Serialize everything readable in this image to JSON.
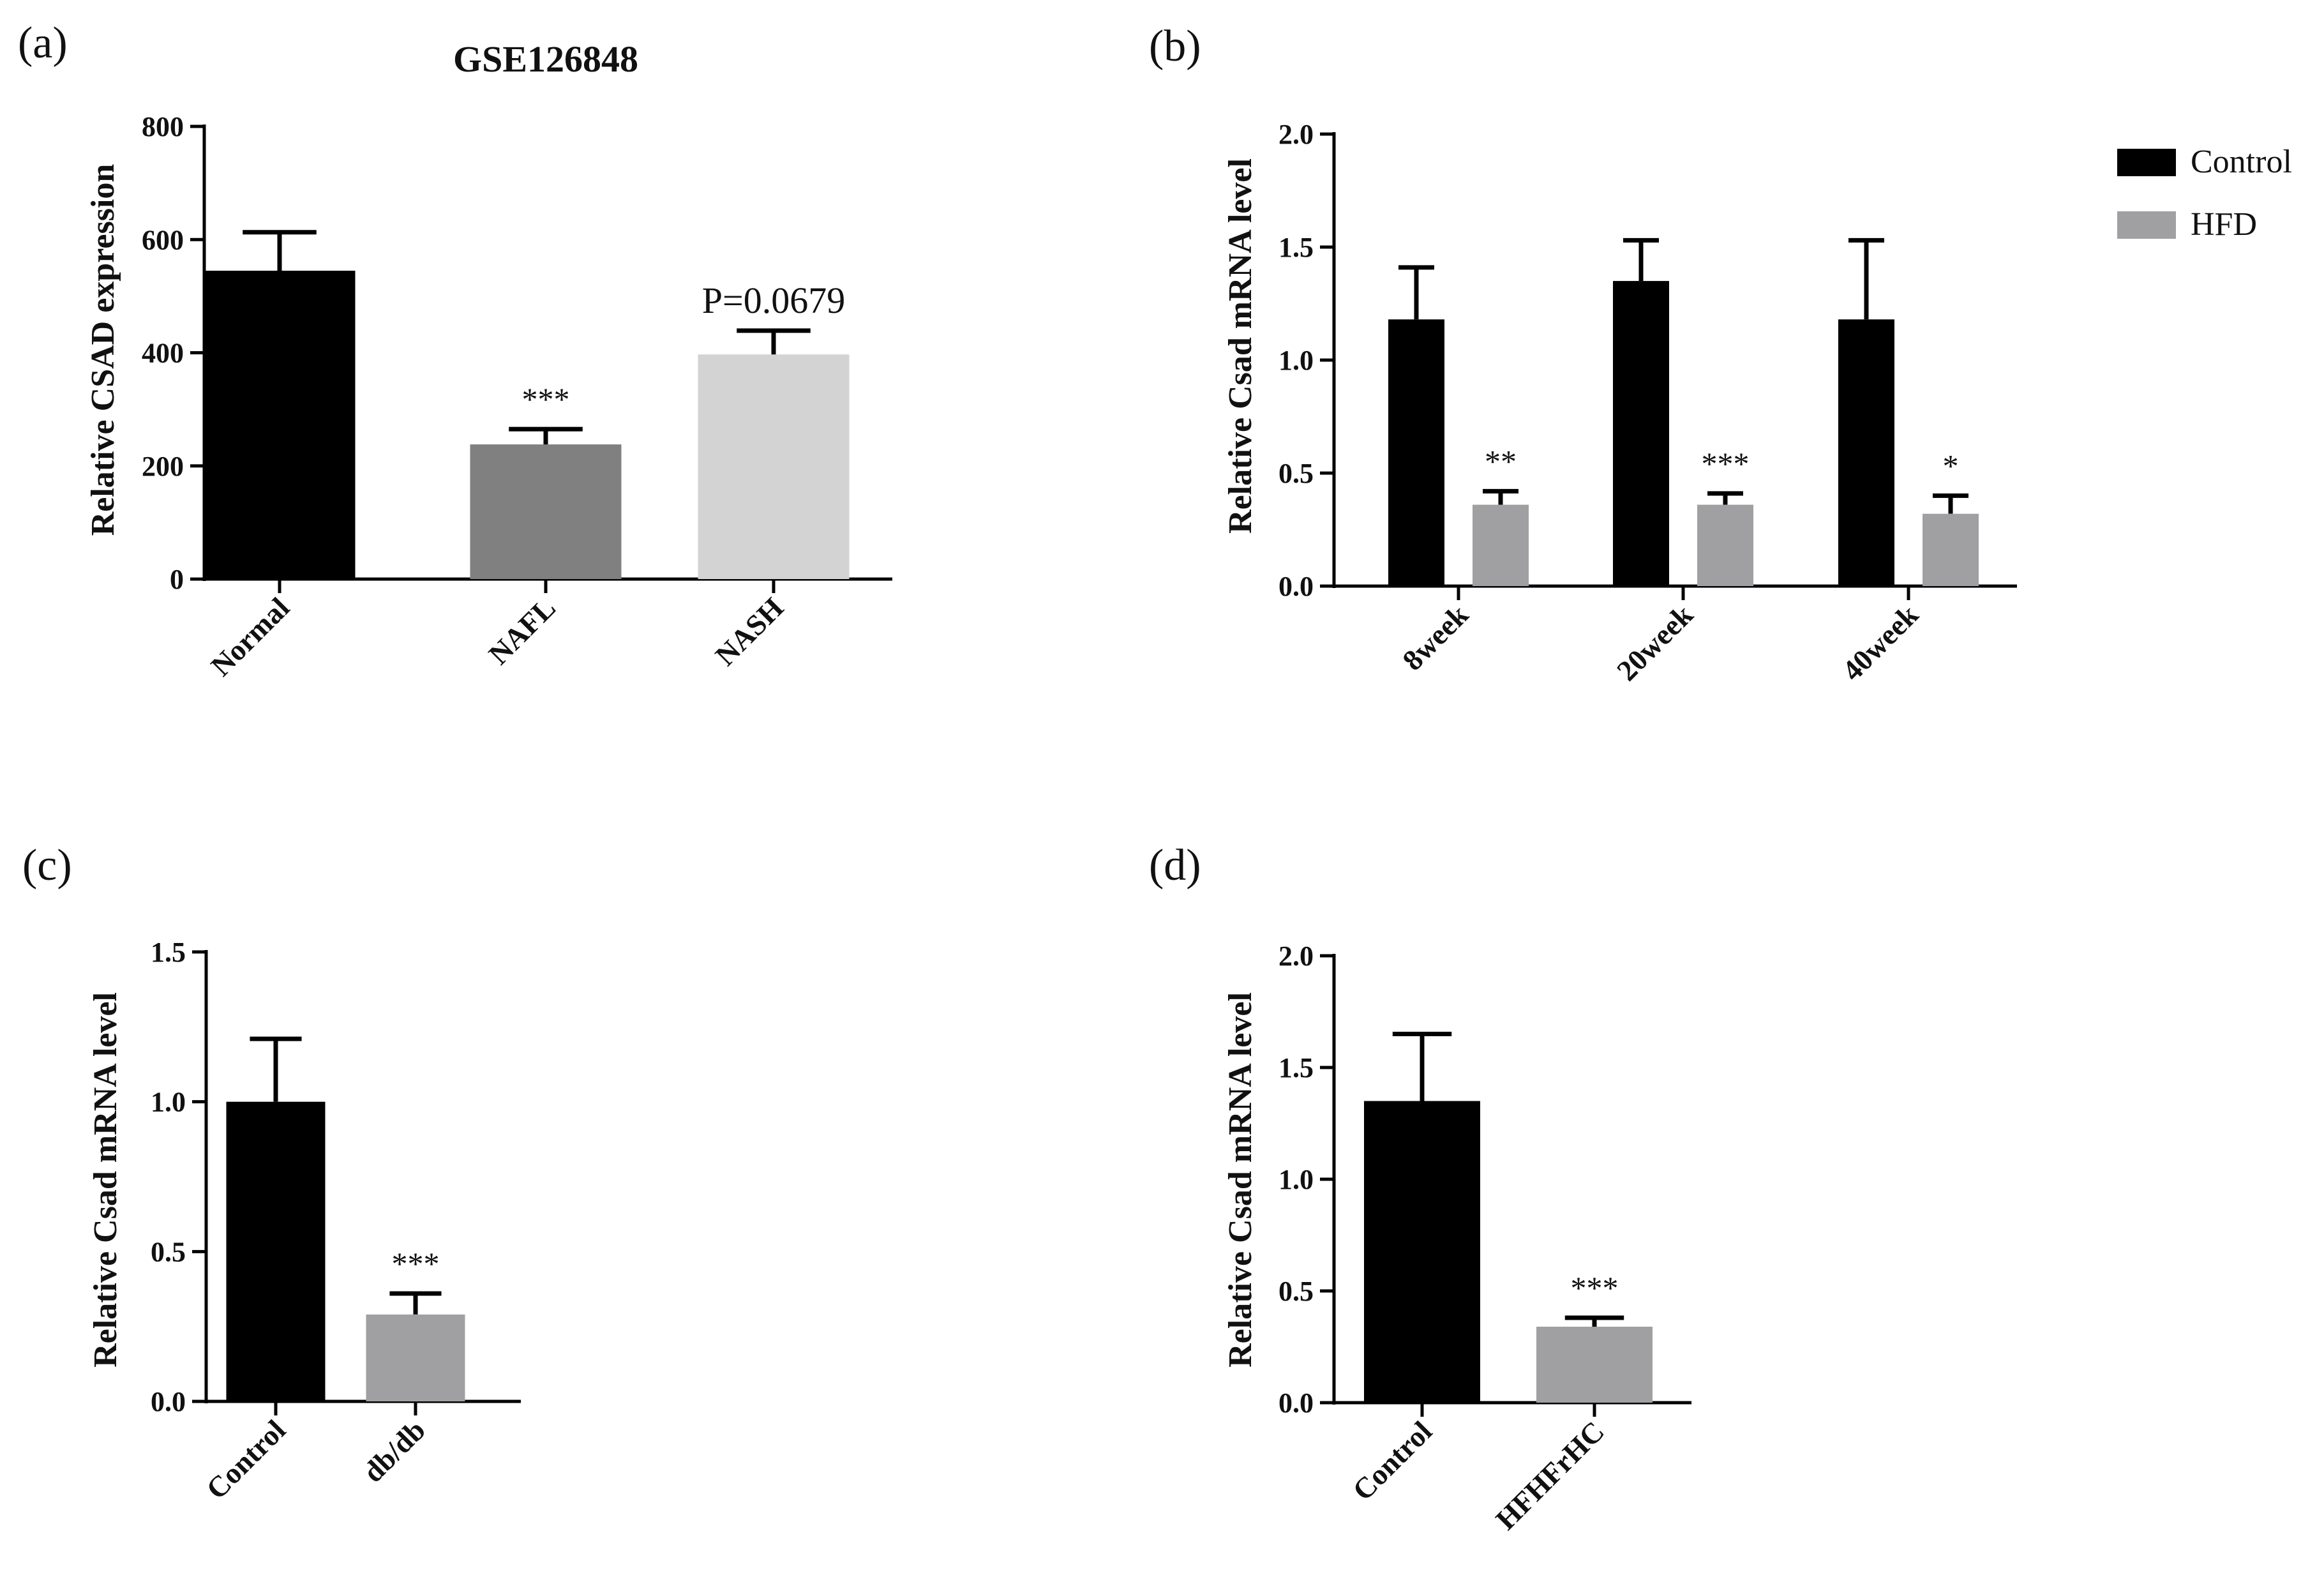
{
  "colors": {
    "control": "#000000",
    "nafl": "#808080",
    "nash": "#d3d3d3",
    "hfd": "#a0a0a2",
    "axis": "#000000"
  },
  "legend": {
    "items": [
      {
        "label": "Control",
        "color": "#000000"
      },
      {
        "label": "HFD",
        "color": "#a0a0a2"
      }
    ]
  },
  "chart_data": [
    {
      "panel": "(a)",
      "type": "bar",
      "title": "GSE126848",
      "xlabel": "",
      "ylabel": "Relative CSAD expression",
      "ylim": [
        0,
        800
      ],
      "yticks": [
        0,
        200,
        400,
        600,
        800
      ],
      "ytick_labels": [
        "0",
        "200",
        "400",
        "600",
        "800"
      ],
      "categories": [
        "Normal",
        "NAFL",
        "NASH"
      ],
      "values": [
        545,
        238,
        397
      ],
      "errors": [
        68,
        27,
        42
      ],
      "colors": [
        "#000000",
        "#808080",
        "#d3d3d3"
      ],
      "annotations": [
        "",
        "***",
        "P=0.0679"
      ]
    },
    {
      "panel": "(b)",
      "type": "bar",
      "title": "",
      "xlabel": "",
      "ylabel": "Relative Csad mRNA level",
      "ylim": [
        0,
        2.0
      ],
      "yticks": [
        0,
        0.5,
        1.0,
        1.5,
        2.0
      ],
      "ytick_labels": [
        "0.0",
        "0.5",
        "1.0",
        "1.5",
        "2.0"
      ],
      "categories": [
        "8week",
        "20week",
        "40week"
      ],
      "series": [
        {
          "name": "Control",
          "color": "#000000",
          "values": [
            1.18,
            1.35,
            1.18
          ],
          "errors": [
            0.23,
            0.18,
            0.35
          ],
          "annotations": [
            "",
            "",
            ""
          ]
        },
        {
          "name": "HFD",
          "color": "#a0a0a2",
          "values": [
            0.36,
            0.36,
            0.32
          ],
          "errors": [
            0.06,
            0.05,
            0.08
          ],
          "annotations": [
            "**",
            "***",
            "*"
          ]
        }
      ]
    },
    {
      "panel": "(c)",
      "type": "bar",
      "title": "",
      "xlabel": "",
      "ylabel": "Relative Csad mRNA level",
      "ylim": [
        0,
        1.5
      ],
      "yticks": [
        0,
        0.5,
        1.0,
        1.5
      ],
      "ytick_labels": [
        "0.0",
        "0.5",
        "1.0",
        "1.5"
      ],
      "categories": [
        "Control",
        "db/db"
      ],
      "values": [
        1.0,
        0.29
      ],
      "errors": [
        0.21,
        0.07
      ],
      "colors": [
        "#000000",
        "#a0a0a2"
      ],
      "annotations": [
        "",
        "***"
      ]
    },
    {
      "panel": "(d)",
      "type": "bar",
      "title": "",
      "xlabel": "",
      "ylabel": "Relative Csad mRNA level",
      "ylim": [
        0,
        2.0
      ],
      "yticks": [
        0,
        0.5,
        1.0,
        1.5,
        2.0
      ],
      "ytick_labels": [
        "0.0",
        "0.5",
        "1.0",
        "1.5",
        "2.0"
      ],
      "categories": [
        "Control",
        "HFHFrHC"
      ],
      "values": [
        1.35,
        0.34
      ],
      "errors": [
        0.3,
        0.04
      ],
      "colors": [
        "#000000",
        "#a0a0a2"
      ],
      "annotations": [
        "",
        "***"
      ]
    }
  ]
}
